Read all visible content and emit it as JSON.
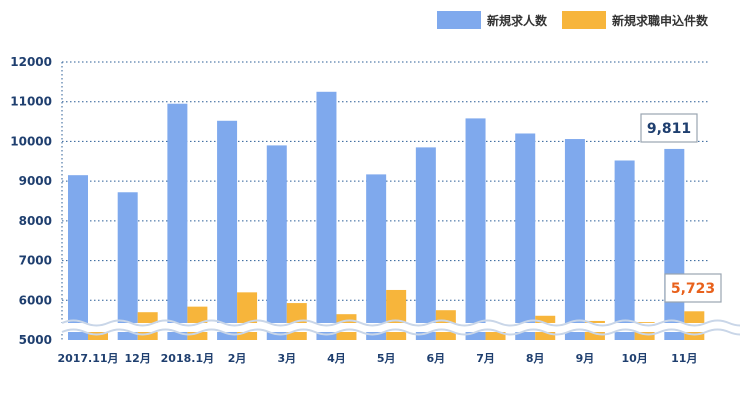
{
  "colors": {
    "series_new_openings": "#7fa9ed",
    "series_new_applicants": "#f7b53b",
    "axis_text": "#1f3f6f",
    "grid": "#2a5d96",
    "callout_blue_text": "#1f3f6f",
    "callout_orange_text": "#e8611c"
  },
  "chart_data": {
    "type": "bar",
    "categories": [
      "2017.11月",
      "12月",
      "2018.1月",
      "2月",
      "3月",
      "4月",
      "5月",
      "6月",
      "7月",
      "8月",
      "9月",
      "10月",
      "11月"
    ],
    "series": [
      {
        "name": "新規求人数",
        "values": [
          9150,
          8720,
          10950,
          10520,
          9900,
          11250,
          9170,
          9850,
          10580,
          10200,
          10060,
          9520,
          9811
        ]
      },
      {
        "name": "新規求職申込件数",
        "values": [
          5220,
          5700,
          5840,
          6200,
          5930,
          5650,
          6260,
          5750,
          5360,
          5610,
          5480,
          5450,
          5723
        ]
      }
    ],
    "yticks": [
      5000,
      6000,
      7000,
      8000,
      9000,
      10000,
      11000,
      12000
    ],
    "ylim": [
      5000,
      12000
    ],
    "axis_break": "wavy break near the bottom of the y-axis",
    "grid": "horizontal dotted",
    "legend_position": "top-right",
    "annotations": [
      {
        "series": "新規求人数",
        "category": "11月",
        "text": "9,811"
      },
      {
        "series": "新規求職申込件数",
        "category": "11月",
        "text": "5,723"
      }
    ]
  }
}
